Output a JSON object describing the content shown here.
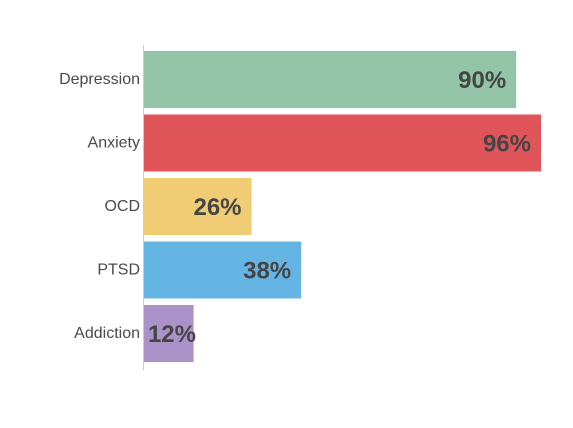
{
  "chart_data": {
    "type": "bar",
    "orientation": "horizontal",
    "categories": [
      "Depression",
      "Anxiety",
      "OCD",
      "PTSD",
      "Addiction"
    ],
    "values": [
      90,
      96,
      26,
      38,
      12
    ],
    "value_labels": [
      "90%",
      "96%",
      "26%",
      "38%",
      "12%"
    ],
    "colors": [
      "#93c4a8",
      "#df555a",
      "#f0cd75",
      "#64b5e4",
      "#ab93c9"
    ],
    "unit": "%",
    "xlim": [
      0,
      96
    ],
    "grid": false,
    "legend": "none"
  }
}
